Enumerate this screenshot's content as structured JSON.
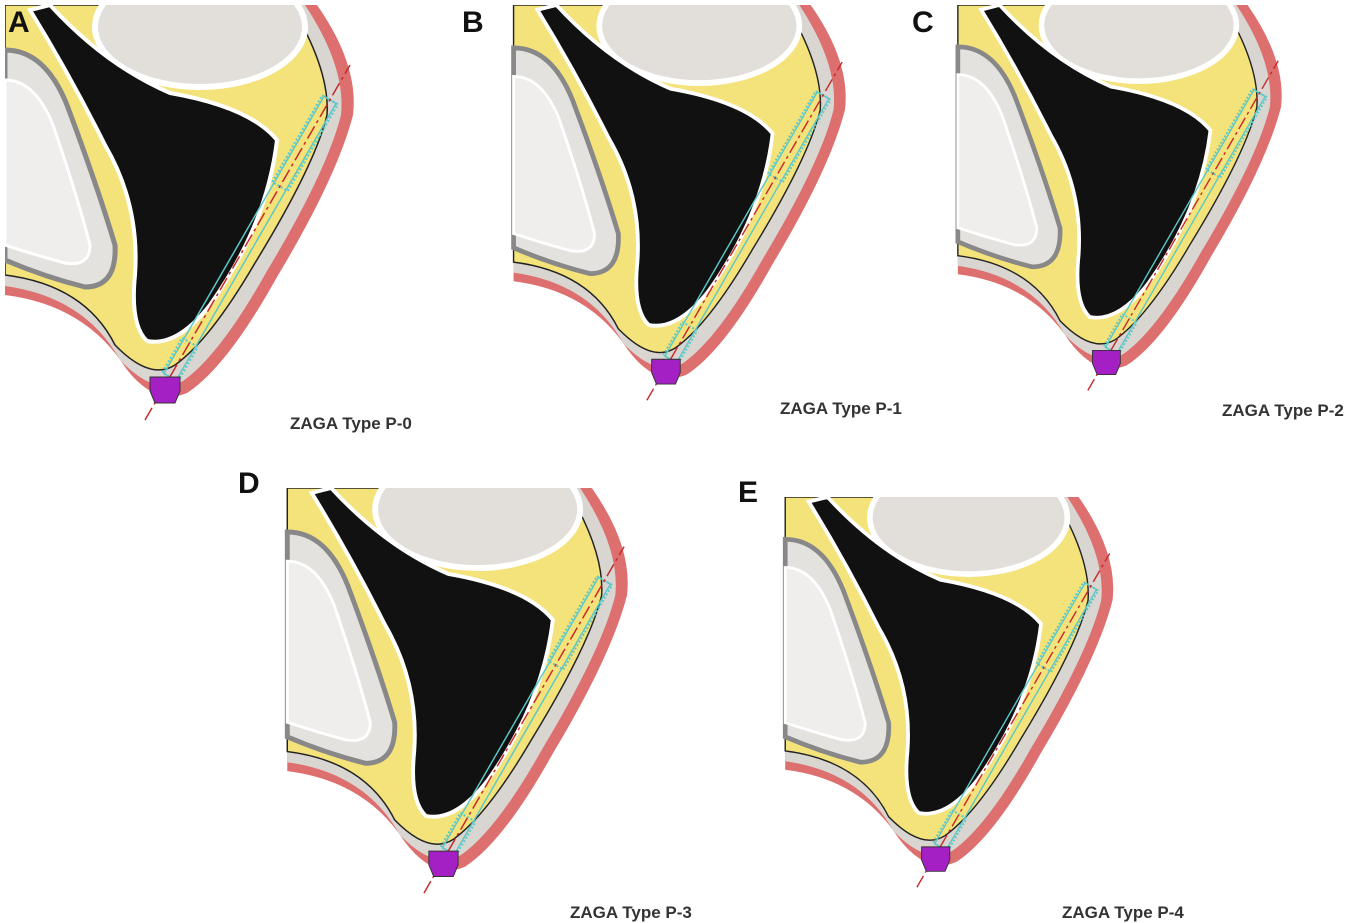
{
  "panels": [
    {
      "letter": "A",
      "caption": "ZAGA Type P-0"
    },
    {
      "letter": "B",
      "caption": "ZAGA Type P-1"
    },
    {
      "letter": "C",
      "caption": "ZAGA Type P-2"
    },
    {
      "letter": "D",
      "caption": "ZAGA Type P-3"
    },
    {
      "letter": "E",
      "caption": "ZAGA Type P-4"
    }
  ]
}
